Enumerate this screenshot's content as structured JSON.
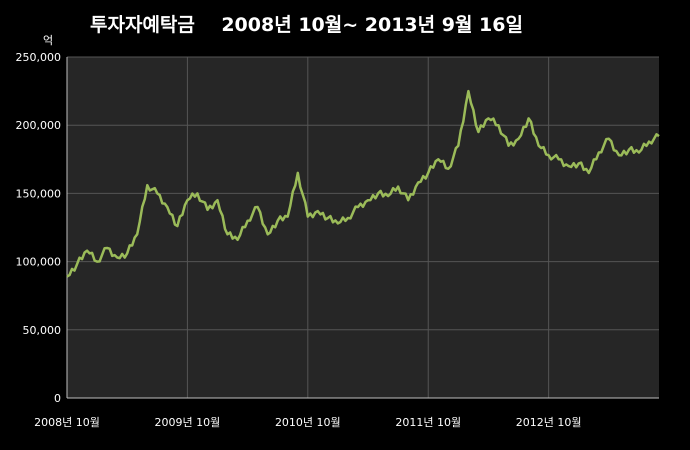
{
  "chart_data": {
    "type": "line",
    "title": "투자자예탁금    2008년 10월~ 2013년 9월 16일",
    "unit_label": "억",
    "xlabel": "",
    "ylabel": "",
    "ylim": [
      0,
      250000
    ],
    "y_ticks": [
      "0",
      "50,000",
      "100,000",
      "150,000",
      "200,000",
      "250,000"
    ],
    "y_tick_values": [
      0,
      50000,
      100000,
      150000,
      200000,
      250000
    ],
    "x_ticks": [
      "2008년 10월",
      "2009년 10월",
      "2010년 10월",
      "2011년 10월",
      "2012년 10월"
    ],
    "x_range": [
      "2008-10",
      "2013-09"
    ],
    "grid": true,
    "colors": {
      "background": "#000000",
      "plot_background": "#262626",
      "line": "#9bbb59",
      "grid": "#555555",
      "axis": "#bfbfbf"
    },
    "series": [
      {
        "x": [
          "2008-10",
          "2008-11",
          "2008-12",
          "2009-01",
          "2009-02",
          "2009-03",
          "2009-04",
          "2009-05",
          "2009-06",
          "2009-07",
          "2009-08",
          "2009-09",
          "2009-10",
          "2009-11",
          "2009-12",
          "2010-01",
          "2010-02",
          "2010-03",
          "2010-04",
          "2010-05",
          "2010-06",
          "2010-07",
          "2010-08",
          "2010-09",
          "2010-10",
          "2010-11",
          "2010-12",
          "2011-01",
          "2011-02",
          "2011-03",
          "2011-04",
          "2011-05",
          "2011-06",
          "2011-07",
          "2011-08",
          "2011-09",
          "2011-10",
          "2011-11",
          "2011-12",
          "2012-01",
          "2012-02",
          "2012-03",
          "2012-04",
          "2012-05",
          "2012-06",
          "2012-07",
          "2012-08",
          "2012-09",
          "2012-10",
          "2012-11",
          "2012-12",
          "2013-01",
          "2013-02",
          "2013-03",
          "2013-04",
          "2013-05",
          "2013-06",
          "2013-07",
          "2013-08",
          "2013-09"
        ],
        "values": [
          89000,
          98000,
          108000,
          100000,
          110000,
          103000,
          106000,
          120000,
          156000,
          150000,
          140000,
          126000,
          145000,
          150000,
          138000,
          145000,
          120000,
          116000,
          130000,
          140000,
          120000,
          130000,
          133000,
          165000,
          133000,
          137000,
          132000,
          128000,
          132000,
          140000,
          145000,
          150000,
          148000,
          155000,
          145000,
          158000,
          165000,
          175000,
          168000,
          185000,
          225000,
          195000,
          205000,
          200000,
          185000,
          190000,
          205000,
          185000,
          178000,
          175000,
          170000,
          172000,
          165000,
          180000,
          190000,
          178000,
          182000,
          180000,
          188000,
          192000
        ]
      }
    ]
  }
}
